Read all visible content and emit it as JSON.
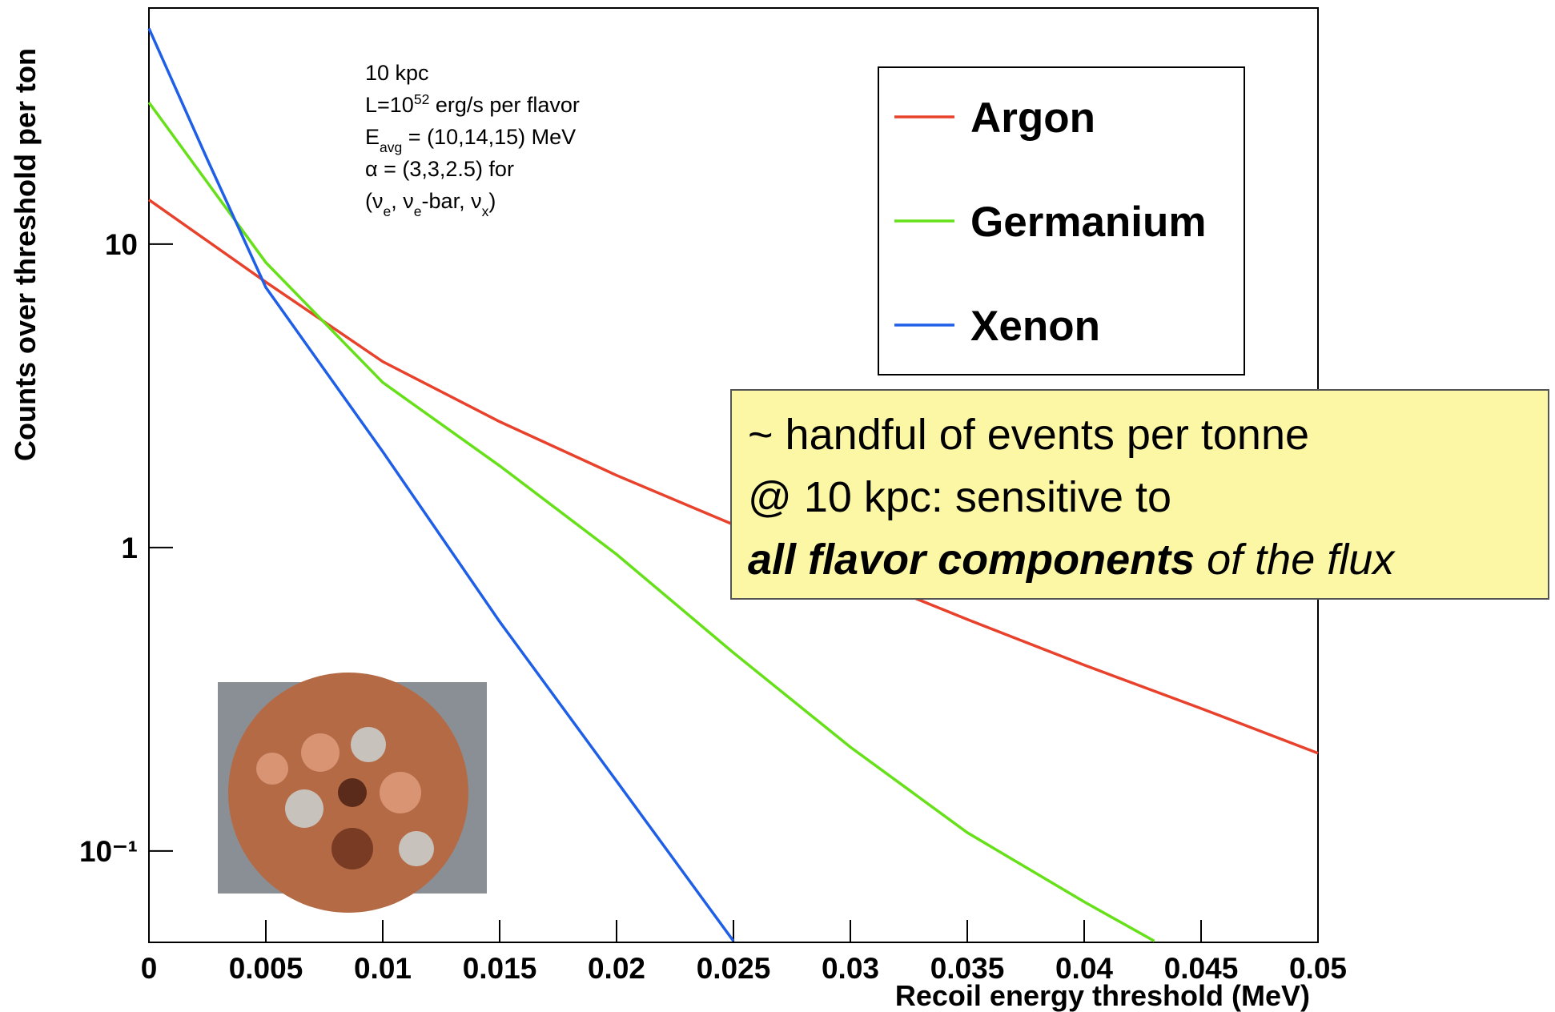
{
  "chart_data": {
    "type": "line",
    "y_label": "Counts over threshold per ton",
    "x_label": "Recoil energy threshold (MeV)",
    "log_y": true,
    "xlim": [
      0,
      0.05
    ],
    "xticks": [
      0,
      0.005,
      0.01,
      0.015,
      0.02,
      0.025,
      0.03,
      0.035,
      0.04,
      0.045,
      0.05
    ],
    "ylim": [
      0.05,
      60
    ],
    "yticks": [
      {
        "value": 0.1,
        "label": "10⁻¹"
      },
      1,
      10
    ],
    "legend": "upper right",
    "series": [
      {
        "name": "Argon",
        "color": "#e8412c",
        "x": [
          0,
          0.005,
          0.01,
          0.015,
          0.02,
          0.025,
          0.03,
          0.035,
          0.04,
          0.045,
          0.05
        ],
        "values": [
          14,
          7.5,
          4.1,
          2.6,
          1.73,
          1.19,
          0.83,
          0.58,
          0.41,
          0.295,
          0.21
        ]
      },
      {
        "name": "Germanium",
        "color": "#66e019",
        "x": [
          0,
          0.005,
          0.01,
          0.015,
          0.02,
          0.025,
          0.03,
          0.035,
          0.04,
          0.043
        ],
        "values": [
          29.3,
          8.7,
          3.5,
          1.86,
          0.95,
          0.45,
          0.22,
          0.115,
          0.068,
          0.0505
        ]
      },
      {
        "name": "Xenon",
        "color": "#1f5fe8",
        "x": [
          0,
          0.0025,
          0.005,
          0.01,
          0.015,
          0.02,
          0.025
        ],
        "values": [
          51.4,
          19,
          7.2,
          2.07,
          0.57,
          0.17,
          0.0505
        ]
      }
    ],
    "annotation_lines": [
      [
        {
          "text": "10 kpc"
        }
      ],
      [
        {
          "text": "L=10"
        },
        {
          "text": "52",
          "sup": true
        },
        {
          "text": " erg/s per flavor"
        }
      ],
      [
        {
          "text": "E"
        },
        {
          "text": "avg",
          "sub": true
        },
        {
          "text": " = (10,14,15) MeV"
        }
      ],
      [
        {
          "text": "α = (3,3,2.5) for"
        }
      ],
      [
        {
          "text": "(ν"
        },
        {
          "text": "e",
          "sub": true
        },
        {
          "text": ", ν"
        },
        {
          "text": "e",
          "sub": true
        },
        {
          "text": "-bar, ν"
        },
        {
          "text": "x",
          "sub": true
        },
        {
          "text": ")"
        }
      ]
    ],
    "callout_lines": [
      [
        {
          "text": "~ handful of events per tonne"
        }
      ],
      [
        {
          "text": "@ 10 kpc:  sensitive to"
        }
      ],
      [
        {
          "text": "all flavor components",
          "bold": true,
          "italic": true
        },
        {
          "text": " of the flux",
          "italic": true
        }
      ]
    ]
  }
}
